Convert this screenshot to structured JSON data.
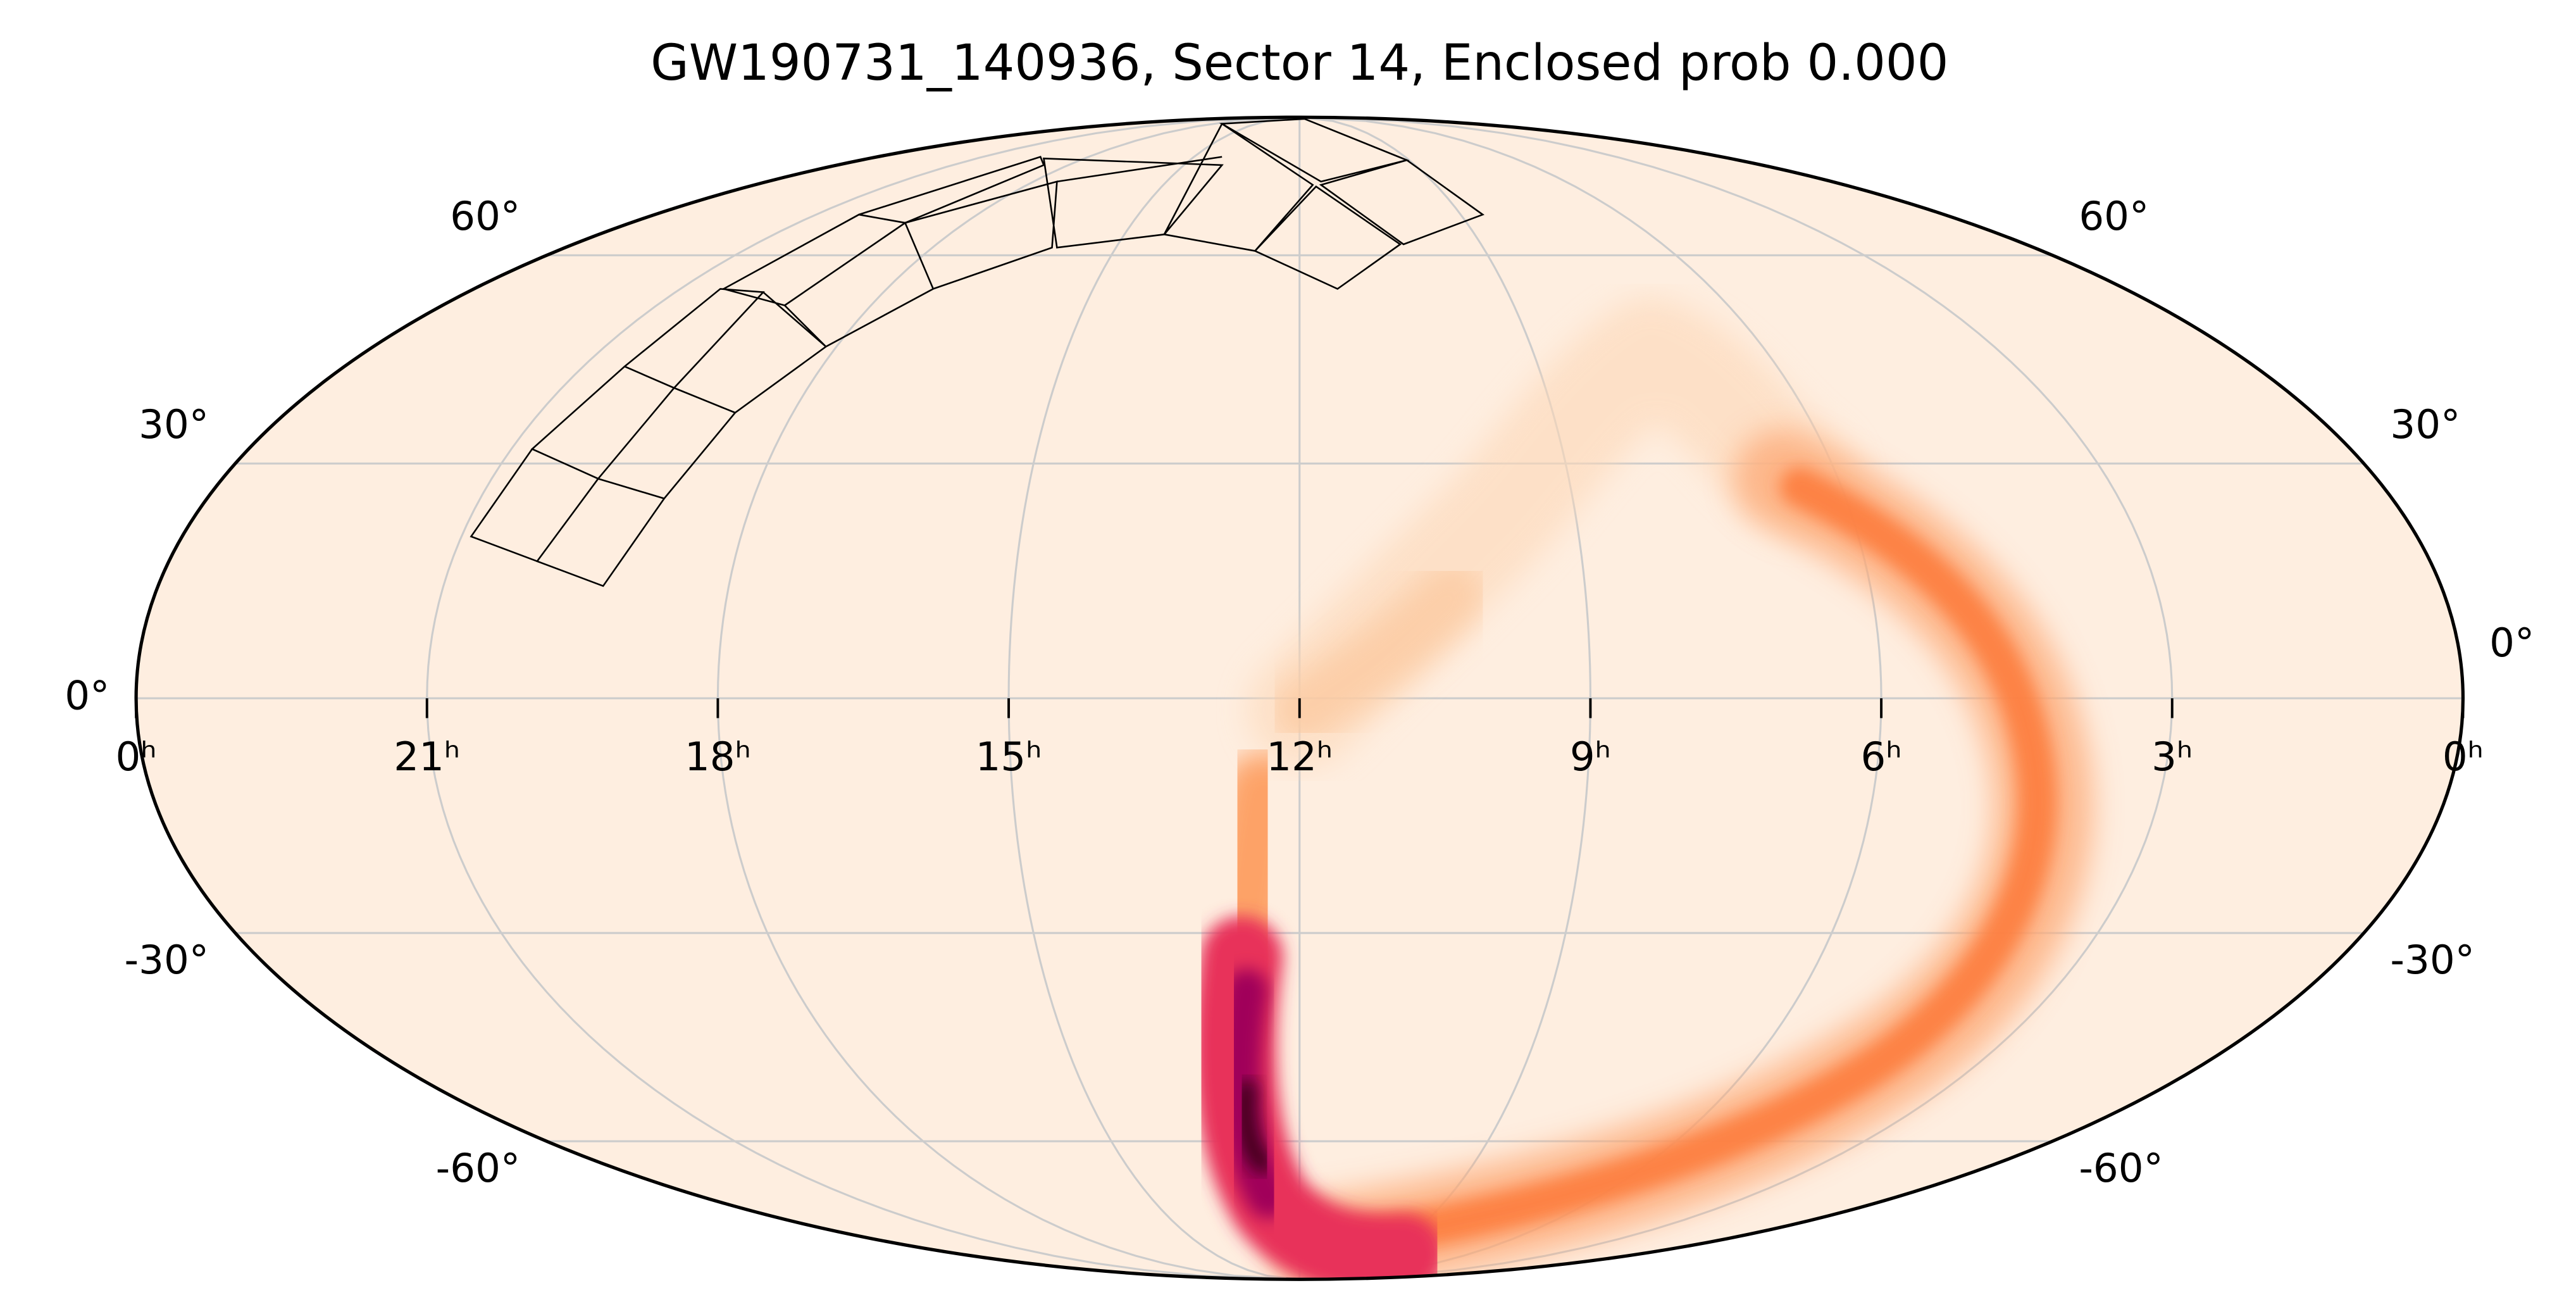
{
  "chart_data": {
    "type": "mollweide",
    "title": "GW190731_140936, Sector 14, Enclosed prob 0.000",
    "xlim": [
      24,
      0
    ],
    "ylim": [
      -90,
      90
    ],
    "xticks": [
      {
        "value": 24,
        "label": "0ʰ"
      },
      {
        "value": 21,
        "label": "21ʰ"
      },
      {
        "value": 18,
        "label": "18ʰ"
      },
      {
        "value": 15,
        "label": "15ʰ"
      },
      {
        "value": 12,
        "label": "12ʰ"
      },
      {
        "value": 9,
        "label": "9ʰ"
      },
      {
        "value": 6,
        "label": "6ʰ"
      },
      {
        "value": 3,
        "label": "3ʰ"
      },
      {
        "value": 0,
        "label": "0ʰ"
      }
    ],
    "yticks": [
      {
        "value": 60,
        "label": "60°"
      },
      {
        "value": 30,
        "label": "30°"
      },
      {
        "value": 0,
        "label": "0°"
      },
      {
        "value": -30,
        "label": "-30°"
      },
      {
        "value": -60,
        "label": "-60°"
      }
    ],
    "grid": true,
    "grid_color": "#cccccc",
    "background": "#feeee0"
  }
}
